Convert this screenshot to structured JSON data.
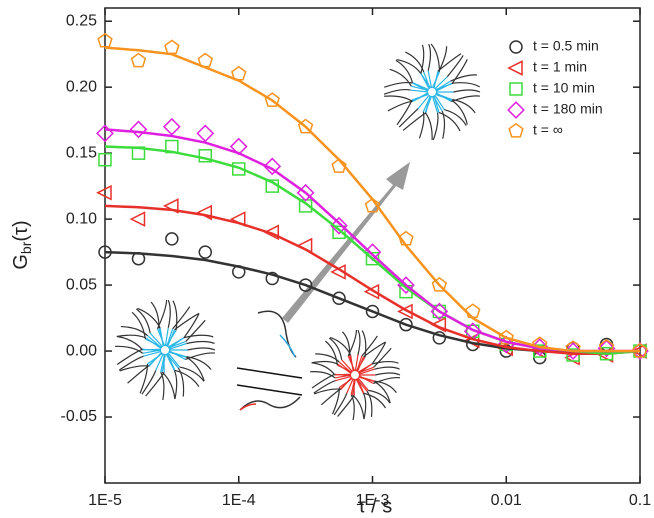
{
  "chart_data": {
    "type": "scatter",
    "y_label": "G",
    "y_label_sub": "br",
    "y_label_suffix": "(τ)",
    "x_label": "τ / s",
    "xscale": "log",
    "x": [
      1e-05,
      1.78e-05,
      3.16e-05,
      5.62e-05,
      0.0001,
      0.000178,
      0.000316,
      0.000562,
      0.001,
      0.00178,
      0.00316,
      0.00562,
      0.01,
      0.0178,
      0.0316,
      0.0562,
      0.1
    ],
    "xlim": [
      1e-05,
      0.1
    ],
    "xticks": [
      {
        "value": 1e-05,
        "label": "1E-5"
      },
      {
        "value": 0.0001,
        "label": "1E-4"
      },
      {
        "value": 0.001,
        "label": "1E-3"
      },
      0.01,
      0.1
    ],
    "ylim": [
      -0.1,
      0.26
    ],
    "yticks": [
      -0.05,
      {
        "value": 0,
        "label": "0.00"
      },
      0.05,
      {
        "value": 0.1,
        "label": "0.10"
      },
      0.15,
      {
        "value": 0.2,
        "label": "0.20"
      },
      0.25
    ],
    "series": [
      {
        "name": "t = 0.5 min",
        "color": "#333333",
        "marker": "circle",
        "values": [
          0.075,
          0.07,
          0.085,
          0.075,
          0.06,
          0.055,
          0.05,
          0.04,
          0.03,
          0.02,
          0.01,
          0.005,
          0,
          -0.005,
          0.002,
          0.005,
          0
        ],
        "fit_values": [
          0.075,
          0.074,
          0.072,
          0.069,
          0.064,
          0.058,
          0.05,
          0.04,
          0.03,
          0.02,
          0.012,
          0.006,
          0.002,
          0,
          -0.001,
          -0.001,
          0
        ]
      },
      {
        "name": "t = 1 min",
        "color": "#e8302a",
        "marker": "triangle-left",
        "values": [
          0.12,
          0.1,
          0.11,
          0.105,
          0.1,
          0.09,
          0.08,
          0.06,
          0.045,
          0.03,
          0.02,
          0.008,
          0.002,
          0,
          -0.005,
          -0.003,
          0
        ],
        "fit_values": [
          0.11,
          0.109,
          0.107,
          0.103,
          0.097,
          0.089,
          0.077,
          0.062,
          0.046,
          0.031,
          0.018,
          0.009,
          0.003,
          0,
          -0.002,
          -0.002,
          0
        ]
      },
      {
        "name": "t = 10 min",
        "color": "#3ddc3d",
        "marker": "square",
        "values": [
          0.145,
          0.15,
          0.155,
          0.148,
          0.138,
          0.125,
          0.11,
          0.09,
          0.07,
          0.045,
          0.03,
          0.015,
          0.005,
          0,
          -0.003,
          -0.002,
          0
        ],
        "fit_values": [
          0.155,
          0.154,
          0.151,
          0.146,
          0.139,
          0.128,
          0.112,
          0.092,
          0.07,
          0.048,
          0.03,
          0.016,
          0.007,
          0.002,
          0,
          -0.002,
          0
        ]
      },
      {
        "name": "t = 180 min",
        "color": "#e020e0",
        "marker": "diamond",
        "values": [
          0.165,
          0.168,
          0.17,
          0.165,
          0.155,
          0.14,
          0.12,
          0.095,
          0.075,
          0.05,
          0.03,
          0.015,
          0.005,
          0.003,
          0,
          0.002,
          0
        ],
        "fit_values": [
          0.168,
          0.166,
          0.163,
          0.158,
          0.15,
          0.138,
          0.12,
          0.097,
          0.073,
          0.05,
          0.03,
          0.016,
          0.007,
          0.002,
          0,
          0,
          0
        ]
      },
      {
        "name": "t = ∞",
        "color": "#f7931e",
        "marker": "pentagon",
        "values": [
          0.235,
          0.22,
          0.23,
          0.22,
          0.21,
          0.19,
          0.17,
          0.14,
          0.11,
          0.085,
          0.05,
          0.03,
          0.01,
          0.005,
          0.002,
          0.003,
          0
        ],
        "fit_values": [
          0.23,
          0.228,
          0.225,
          0.215,
          0.205,
          0.19,
          0.17,
          0.145,
          0.115,
          0.08,
          0.05,
          0.025,
          0.01,
          0.003,
          0,
          0,
          0
        ]
      }
    ]
  }
}
